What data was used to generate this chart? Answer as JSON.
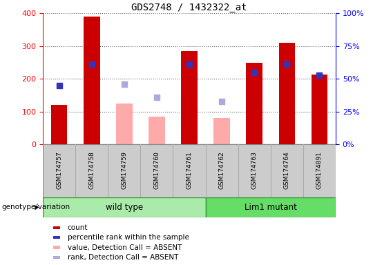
{
  "title": "GDS2748 / 1432322_at",
  "samples": [
    "GSM174757",
    "GSM174758",
    "GSM174759",
    "GSM174760",
    "GSM174761",
    "GSM174762",
    "GSM174763",
    "GSM174764",
    "GSM174891"
  ],
  "count_values": [
    120,
    390,
    null,
    null,
    285,
    null,
    248,
    310,
    213
  ],
  "count_absent_values": [
    null,
    null,
    125,
    85,
    null,
    80,
    null,
    null,
    null
  ],
  "rank_values": [
    45,
    61,
    null,
    null,
    61,
    null,
    55,
    61,
    53
  ],
  "rank_absent_values": [
    null,
    null,
    46,
    36,
    null,
    33,
    null,
    null,
    null
  ],
  "ylim_left": [
    0,
    400
  ],
  "ylim_right": [
    0,
    100
  ],
  "yticks_left": [
    0,
    100,
    200,
    300,
    400
  ],
  "yticks_right": [
    0,
    25,
    50,
    75,
    100
  ],
  "yticklabels_right": [
    "0%",
    "25%",
    "50%",
    "75%",
    "100%"
  ],
  "wild_type_indices": [
    0,
    1,
    2,
    3,
    4
  ],
  "lim1_mutant_indices": [
    5,
    6,
    7,
    8
  ],
  "wild_type_label": "wild type",
  "lim1_mutant_label": "Lim1 mutant",
  "genotype_label": "genotype/variation",
  "bar_color_present": "#cc0000",
  "bar_color_absent": "#ffaaaa",
  "square_color_present": "#3333bb",
  "square_color_absent": "#aaaadd",
  "group_bg_color": "#cccccc",
  "wild_type_bg": "#aaeaaa",
  "lim1_bg": "#66dd66",
  "legend_items": [
    {
      "color": "#cc0000",
      "label": "count"
    },
    {
      "color": "#3333bb",
      "label": "percentile rank within the sample"
    },
    {
      "color": "#ffaaaa",
      "label": "value, Detection Call = ABSENT"
    },
    {
      "color": "#aaaadd",
      "label": "rank, Detection Call = ABSENT"
    }
  ],
  "bar_width": 0.5,
  "square_size": 40,
  "dotted_grid_color": "#666666"
}
